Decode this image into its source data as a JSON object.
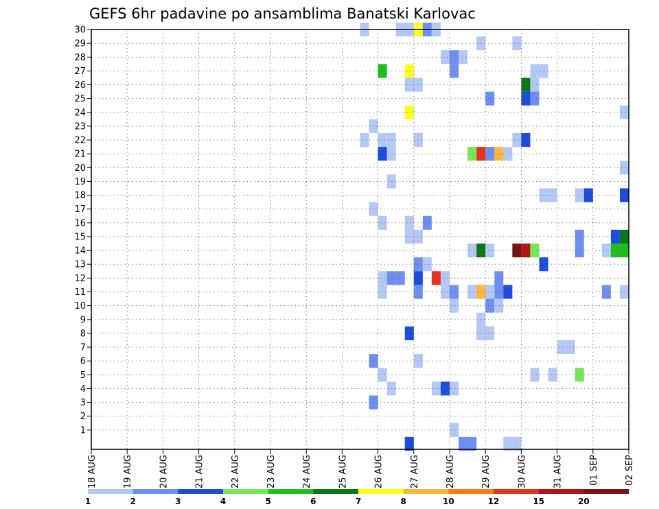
{
  "chart_data": {
    "type": "heatmap",
    "title": "GEFS 6hr padavine po ansamblima Banatski Karlovac",
    "x_tick_labels": [
      "18 AUG",
      "19 AUG",
      "20 AUG",
      "21 AUG",
      "22 AUG",
      "23 AUG",
      "24 AUG",
      "25 AUG",
      "26 AUG",
      "27 AUG",
      "28 AUG",
      "29 AUG",
      "30 AUG",
      "31 AUG",
      "01 SEP",
      "02 SEP"
    ],
    "y_tick_labels": [
      "1",
      "2",
      "3",
      "4",
      "5",
      "6",
      "7",
      "8",
      "9",
      "10",
      "11",
      "12",
      "13",
      "14",
      "15",
      "16",
      "17",
      "18",
      "19",
      "20",
      "21",
      "22",
      "23",
      "24",
      "25",
      "26",
      "27",
      "28",
      "29",
      "30"
    ],
    "steps_per_day": 4,
    "member_range": [
      0,
      30
    ],
    "grid": true,
    "legend": {
      "position": "bottom",
      "colors": [
        "#b4c8f5",
        "#6e8ff0",
        "#1e4ddc",
        "#78e65a",
        "#1ebe1e",
        "#0a7814",
        "#ffff1e",
        "#ffb43c",
        "#ff7814",
        "#e6321e",
        "#b41414",
        "#781414"
      ],
      "labels": [
        "1",
        "2",
        "3",
        "4",
        "5",
        "6",
        "7",
        "8",
        "10",
        "12",
        "15",
        "20"
      ]
    },
    "cells": [
      {
        "day": 7.625,
        "member": 30,
        "level": 1
      },
      {
        "day": 8.625,
        "member": 30,
        "level": 1
      },
      {
        "day": 8.875,
        "member": 30,
        "level": 1
      },
      {
        "day": 9.125,
        "member": 30,
        "level": 7
      },
      {
        "day": 9.375,
        "member": 30,
        "level": 2
      },
      {
        "day": 9.625,
        "member": 30,
        "level": 1
      },
      {
        "day": 10.875,
        "member": 29,
        "level": 1
      },
      {
        "day": 11.875,
        "member": 29,
        "level": 1
      },
      {
        "day": 9.875,
        "member": 28,
        "level": 1
      },
      {
        "day": 10.125,
        "member": 28,
        "level": 2
      },
      {
        "day": 10.375,
        "member": 28,
        "level": 1
      },
      {
        "day": 8.125,
        "member": 27,
        "level": 5
      },
      {
        "day": 8.875,
        "member": 27,
        "level": 7
      },
      {
        "day": 10.125,
        "member": 27,
        "level": 2
      },
      {
        "day": 12.375,
        "member": 27,
        "level": 1
      },
      {
        "day": 12.625,
        "member": 27,
        "level": 1
      },
      {
        "day": 8.875,
        "member": 26,
        "level": 1
      },
      {
        "day": 9.125,
        "member": 26,
        "level": 1
      },
      {
        "day": 12.125,
        "member": 26,
        "level": 6
      },
      {
        "day": 12.375,
        "member": 26,
        "level": 1
      },
      {
        "day": 11.125,
        "member": 25,
        "level": 2
      },
      {
        "day": 12.125,
        "member": 25,
        "level": 3
      },
      {
        "day": 12.375,
        "member": 25,
        "level": 2
      },
      {
        "day": 8.875,
        "member": 24,
        "level": 7
      },
      {
        "day": 14.875,
        "member": 24,
        "level": 1
      },
      {
        "day": 7.875,
        "member": 23,
        "level": 1
      },
      {
        "day": 7.625,
        "member": 22,
        "level": 1
      },
      {
        "day": 8.125,
        "member": 22,
        "level": 1
      },
      {
        "day": 8.375,
        "member": 22,
        "level": 1
      },
      {
        "day": 9.125,
        "member": 22,
        "level": 1
      },
      {
        "day": 11.875,
        "member": 22,
        "level": 1
      },
      {
        "day": 12.125,
        "member": 22,
        "level": 3
      },
      {
        "day": 8.125,
        "member": 21,
        "level": 3
      },
      {
        "day": 8.375,
        "member": 21,
        "level": 1
      },
      {
        "day": 10.625,
        "member": 21,
        "level": 4
      },
      {
        "day": 10.875,
        "member": 21,
        "level": 10
      },
      {
        "day": 11.125,
        "member": 21,
        "level": 2
      },
      {
        "day": 11.375,
        "member": 21,
        "level": 8
      },
      {
        "day": 11.625,
        "member": 21,
        "level": 1
      },
      {
        "day": 14.875,
        "member": 20,
        "level": 1
      },
      {
        "day": 8.375,
        "member": 19,
        "level": 1
      },
      {
        "day": 12.625,
        "member": 18,
        "level": 1
      },
      {
        "day": 12.875,
        "member": 18,
        "level": 1
      },
      {
        "day": 13.625,
        "member": 18,
        "level": 1
      },
      {
        "day": 13.875,
        "member": 18,
        "level": 3
      },
      {
        "day": 14.875,
        "member": 18,
        "level": 3
      },
      {
        "day": 7.875,
        "member": 17,
        "level": 1
      },
      {
        "day": 8.125,
        "member": 16,
        "level": 1
      },
      {
        "day": 8.875,
        "member": 16,
        "level": 1
      },
      {
        "day": 9.375,
        "member": 16,
        "level": 2
      },
      {
        "day": 8.875,
        "member": 15,
        "level": 1
      },
      {
        "day": 9.125,
        "member": 15,
        "level": 1
      },
      {
        "day": 13.625,
        "member": 15,
        "level": 2
      },
      {
        "day": 14.625,
        "member": 15,
        "level": 3
      },
      {
        "day": 14.875,
        "member": 15,
        "level": 6
      },
      {
        "day": 10.625,
        "member": 14,
        "level": 1
      },
      {
        "day": 10.875,
        "member": 14,
        "level": 6
      },
      {
        "day": 11.125,
        "member": 14,
        "level": 1
      },
      {
        "day": 11.875,
        "member": 14,
        "level": 12
      },
      {
        "day": 12.125,
        "member": 14,
        "level": 11
      },
      {
        "day": 12.375,
        "member": 14,
        "level": 4
      },
      {
        "day": 13.625,
        "member": 14,
        "level": 2
      },
      {
        "day": 14.375,
        "member": 14,
        "level": 1
      },
      {
        "day": 14.625,
        "member": 14,
        "level": 5
      },
      {
        "day": 14.875,
        "member": 14,
        "level": 5
      },
      {
        "day": 9.125,
        "member": 13,
        "level": 2
      },
      {
        "day": 9.375,
        "member": 13,
        "level": 1
      },
      {
        "day": 12.625,
        "member": 13,
        "level": 3
      },
      {
        "day": 8.125,
        "member": 12,
        "level": 1
      },
      {
        "day": 8.375,
        "member": 12,
        "level": 2
      },
      {
        "day": 8.625,
        "member": 12,
        "level": 2
      },
      {
        "day": 9.125,
        "member": 12,
        "level": 3
      },
      {
        "day": 9.625,
        "member": 12,
        "level": 10
      },
      {
        "day": 9.875,
        "member": 12,
        "level": 1
      },
      {
        "day": 11.375,
        "member": 12,
        "level": 2
      },
      {
        "day": 8.125,
        "member": 11,
        "level": 1
      },
      {
        "day": 9.125,
        "member": 11,
        "level": 2
      },
      {
        "day": 9.875,
        "member": 11,
        "level": 1
      },
      {
        "day": 10.125,
        "member": 11,
        "level": 2
      },
      {
        "day": 10.625,
        "member": 11,
        "level": 1
      },
      {
        "day": 10.875,
        "member": 11,
        "level": 8
      },
      {
        "day": 11.125,
        "member": 11,
        "level": 1
      },
      {
        "day": 11.375,
        "member": 11,
        "level": 2
      },
      {
        "day": 11.625,
        "member": 11,
        "level": 3
      },
      {
        "day": 14.375,
        "member": 11,
        "level": 2
      },
      {
        "day": 14.875,
        "member": 11,
        "level": 1
      },
      {
        "day": 10.125,
        "member": 10,
        "level": 1
      },
      {
        "day": 11.125,
        "member": 10,
        "level": 2
      },
      {
        "day": 11.375,
        "member": 10,
        "level": 1
      },
      {
        "day": 8.875,
        "member": 8,
        "level": 3
      },
      {
        "day": 10.875,
        "member": 8,
        "level": 1
      },
      {
        "day": 11.125,
        "member": 8,
        "level": 1
      },
      {
        "day": 10.875,
        "member": 9,
        "level": 1
      },
      {
        "day": 13.125,
        "member": 7,
        "level": 1
      },
      {
        "day": 13.375,
        "member": 7,
        "level": 1
      },
      {
        "day": 7.875,
        "member": 6,
        "level": 2
      },
      {
        "day": 9.125,
        "member": 6,
        "level": 1
      },
      {
        "day": 8.125,
        "member": 5,
        "level": 1
      },
      {
        "day": 12.375,
        "member": 5,
        "level": 1
      },
      {
        "day": 12.875,
        "member": 5,
        "level": 1
      },
      {
        "day": 13.625,
        "member": 5,
        "level": 4
      },
      {
        "day": 8.375,
        "member": 4,
        "level": 1
      },
      {
        "day": 9.625,
        "member": 4,
        "level": 1
      },
      {
        "day": 9.875,
        "member": 4,
        "level": 3
      },
      {
        "day": 10.125,
        "member": 4,
        "level": 1
      },
      {
        "day": 7.875,
        "member": 3,
        "level": 2
      },
      {
        "day": 10.125,
        "member": 1,
        "level": 1
      },
      {
        "day": 8.875,
        "member": 0,
        "level": 3
      },
      {
        "day": 10.375,
        "member": 0,
        "level": 2
      },
      {
        "day": 10.625,
        "member": 0,
        "level": 2
      },
      {
        "day": 11.625,
        "member": 0,
        "level": 1
      },
      {
        "day": 11.875,
        "member": 0,
        "level": 1
      }
    ]
  }
}
